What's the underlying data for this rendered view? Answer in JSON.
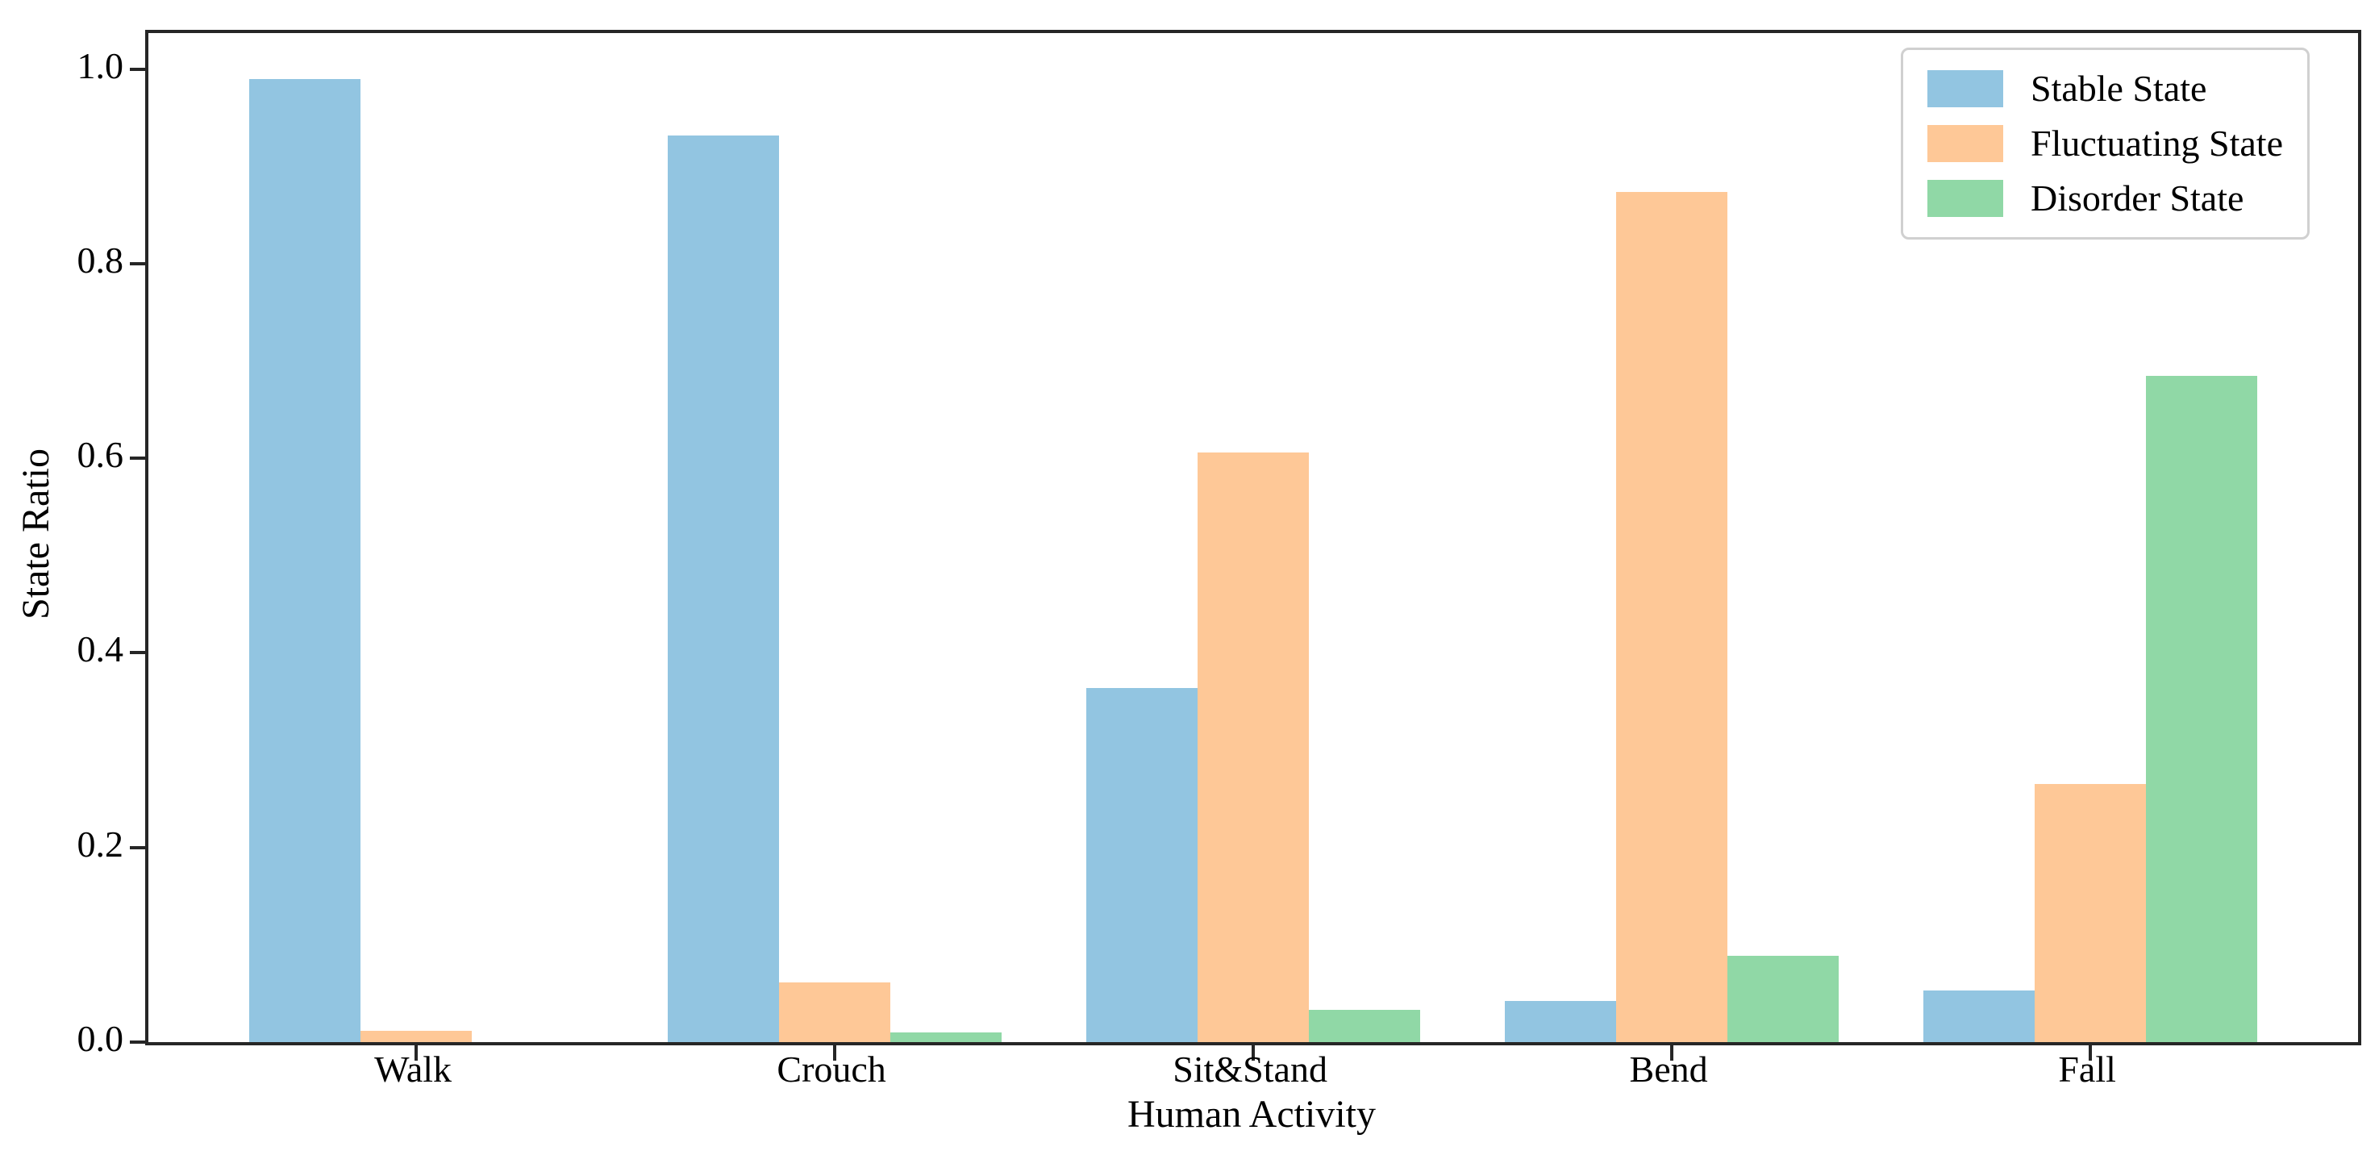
{
  "chart_data": {
    "type": "bar",
    "title": "",
    "xlabel": "Human Activity",
    "ylabel": "State Ratio",
    "categories": [
      "Walk",
      "Crouch",
      "Sit&Stand",
      "Bend",
      "Fall"
    ],
    "series": [
      {
        "name": "Stable State",
        "color": "#92C5E1",
        "values": [
          0.99,
          0.932,
          0.364,
          0.042,
          0.053
        ]
      },
      {
        "name": "Fluctuating State",
        "color": "#FEC897",
        "values": [
          0.012,
          0.061,
          0.606,
          0.874,
          0.265
        ]
      },
      {
        "name": "Disorder State",
        "color": "#90D8A6",
        "values": [
          0.0,
          0.01,
          0.033,
          0.089,
          0.685
        ]
      }
    ],
    "ylim": [
      0.0,
      1.037
    ],
    "yticks": [
      "0.0",
      "0.2",
      "0.4",
      "0.6",
      "0.8",
      "1.0"
    ],
    "ytick_values": [
      0.0,
      0.2,
      0.4,
      0.6,
      0.8,
      1.0
    ],
    "legend_position": "upper right",
    "grid": false
  },
  "colors": {
    "spine": "#262626",
    "text": "#000000",
    "legend_border": "#d0d0d0",
    "background": "#ffffff"
  }
}
